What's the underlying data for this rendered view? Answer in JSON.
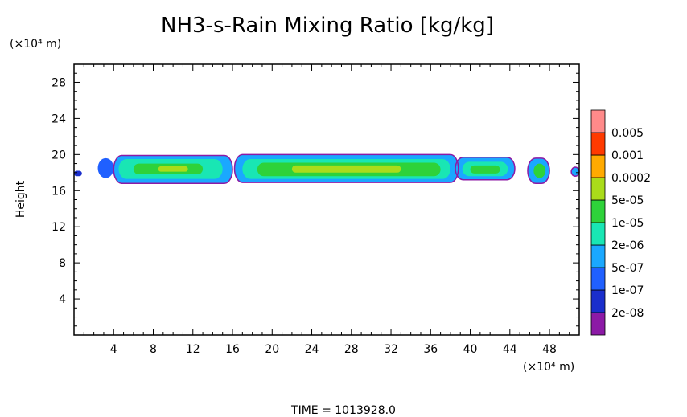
{
  "chart_data": {
    "type": "heatmap",
    "title": "NH3-s-Rain Mixing Ratio [kg/kg]",
    "xlabel": "",
    "ylabel": "Height",
    "x_unit": "(×10⁴ m)",
    "y_unit": "(×10⁴ m)",
    "xlim": [
      0,
      51
    ],
    "ylim": [
      0,
      30
    ],
    "x_ticks": [
      4,
      8,
      12,
      16,
      20,
      24,
      28,
      32,
      36,
      40,
      44,
      48
    ],
    "y_ticks": [
      4,
      8,
      12,
      16,
      20,
      24,
      28
    ],
    "footer": "TIME = 1013928.0",
    "legend": {
      "levels": [
        "2e-08",
        "1e-07",
        "5e-07",
        "2e-06",
        "1e-05",
        "5e-05",
        "0.0002",
        "0.001",
        "0.005"
      ],
      "colors": [
        "#8c1aa6",
        "#1a2ecc",
        "#2060ff",
        "#1aa8ff",
        "#19e6b4",
        "#2ed23a",
        "#aadc1a",
        "#ffaa00",
        "#ff3a00",
        "#ff8a8a"
      ]
    },
    "regions": [
      {
        "x0": 0.0,
        "x1": 0.8,
        "y0": 17.6,
        "y1": 18.2,
        "level": 0
      },
      {
        "x0": 2.4,
        "x1": 4.0,
        "y0": 17.4,
        "y1": 19.6,
        "level": 1
      },
      {
        "x0": 4.0,
        "x1": 16.0,
        "y0": 16.8,
        "y1": 19.9,
        "level": 2
      },
      {
        "x0": 4.5,
        "x1": 15.0,
        "y0": 17.3,
        "y1": 19.5,
        "level": 3
      },
      {
        "x0": 6.0,
        "x1": 13.0,
        "y0": 17.8,
        "y1": 19.0,
        "level": 4
      },
      {
        "x0": 8.5,
        "x1": 11.5,
        "y0": 18.1,
        "y1": 18.7,
        "level": 5
      },
      {
        "x0": 16.2,
        "x1": 38.8,
        "y0": 16.9,
        "y1": 20.0,
        "level": 2
      },
      {
        "x0": 17.0,
        "x1": 38.0,
        "y0": 17.3,
        "y1": 19.5,
        "level": 3
      },
      {
        "x0": 18.5,
        "x1": 37.0,
        "y0": 17.6,
        "y1": 19.1,
        "level": 4
      },
      {
        "x0": 22.0,
        "x1": 33.0,
        "y0": 18.0,
        "y1": 18.8,
        "level": 5
      },
      {
        "x0": 38.5,
        "x1": 44.5,
        "y0": 17.2,
        "y1": 19.7,
        "level": 2
      },
      {
        "x0": 39.2,
        "x1": 43.8,
        "y0": 17.6,
        "y1": 19.2,
        "level": 3
      },
      {
        "x0": 40.0,
        "x1": 43.0,
        "y0": 17.9,
        "y1": 18.8,
        "level": 4
      },
      {
        "x0": 45.8,
        "x1": 48.0,
        "y0": 16.8,
        "y1": 19.6,
        "level": 2
      },
      {
        "x0": 46.4,
        "x1": 47.6,
        "y0": 17.4,
        "y1": 19.0,
        "level": 4
      },
      {
        "x0": 50.2,
        "x1": 51.0,
        "y0": 17.6,
        "y1": 18.6,
        "level": 2
      }
    ]
  }
}
